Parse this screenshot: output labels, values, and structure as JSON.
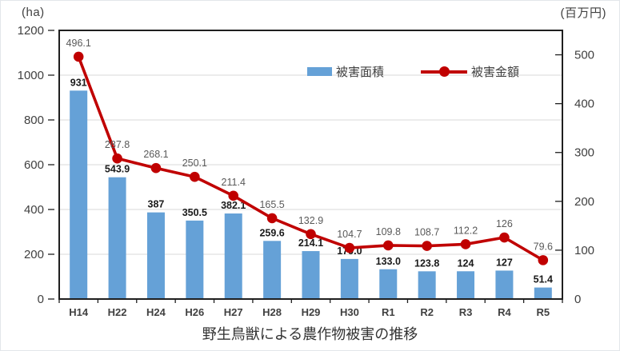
{
  "chart_data": {
    "type": "bar+line combo",
    "title": "野生鳥獣による農作物被害の推移",
    "categories": [
      "H14",
      "H22",
      "H24",
      "H26",
      "H27",
      "H28",
      "H29",
      "H30",
      "R1",
      "R2",
      "R3",
      "R4",
      "R5"
    ],
    "series": [
      {
        "name": "被害面積",
        "type": "bar",
        "axis": "left",
        "values": [
          931,
          543.9,
          387,
          350.5,
          382.1,
          259.6,
          214.1,
          179.0,
          133.0,
          123.8,
          124,
          127,
          51.4
        ],
        "labels": [
          "931",
          "543.9",
          "387",
          "350.5",
          "382.1",
          "259.6",
          "214.1",
          "179.0",
          "133.0",
          "123.8",
          "124",
          "127",
          "51.4"
        ]
      },
      {
        "name": "被害金額",
        "type": "line",
        "axis": "right",
        "values": [
          496.1,
          287.8,
          268.1,
          250.1,
          211.4,
          165.5,
          132.9,
          104.7,
          109.8,
          108.7,
          112.2,
          126,
          79.6
        ],
        "labels": [
          "496.1",
          "287.8",
          "268.1",
          "250.1",
          "211.4",
          "165.5",
          "132.9",
          "104.7",
          "109.8",
          "108.7",
          "112.2",
          "126",
          "79.6"
        ]
      }
    ],
    "left_axis": {
      "label": "(ha)",
      "min": 0,
      "max": 1200,
      "step": 200,
      "ticks": [
        "0",
        "200",
        "400",
        "600",
        "800",
        "1000",
        "1200"
      ]
    },
    "right_axis": {
      "label": "(百万円)",
      "min": 0,
      "max": 550,
      "step": 100,
      "ticks": [
        "0",
        "100",
        "200",
        "300",
        "400",
        "500"
      ]
    },
    "legend": {
      "items": [
        {
          "label": "被害面積",
          "marker": "bar"
        },
        {
          "label": "被害金額",
          "marker": "line"
        }
      ],
      "position": "top-center-inside"
    },
    "grid": "horizontal, every 200 ha",
    "colors": {
      "bar": "#65A1D7",
      "line": "#C00000",
      "grid": "#D9D9D9",
      "axis": "#1F1F1F",
      "bar_label": "#1A1A1A",
      "line_label": "#595959",
      "tick_label": "#404040"
    }
  }
}
